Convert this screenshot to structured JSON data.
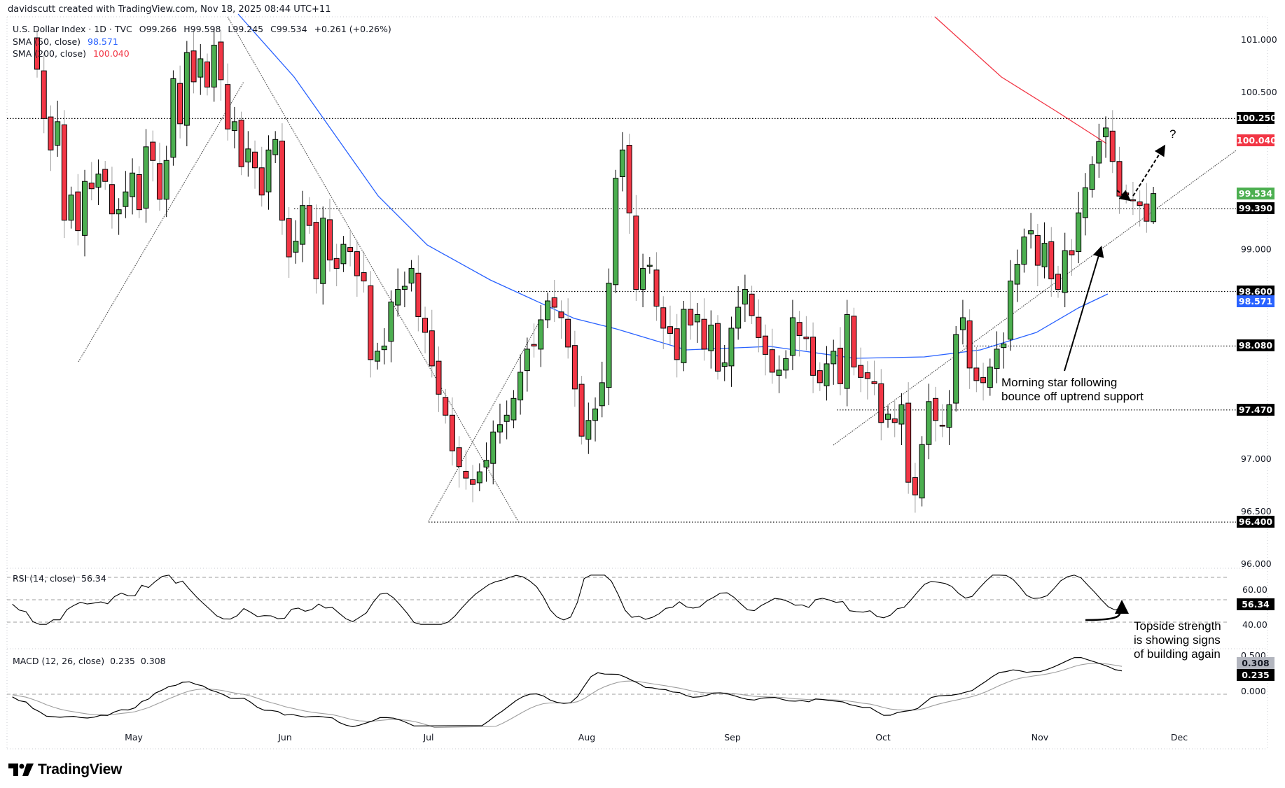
{
  "header": {
    "credit": "davidscutt created with TradingView.com, Nov 18, 2025 08:44 UTC+11",
    "symbol": "U.S. Dollar Index · 1D · TVC",
    "open": "O99.266",
    "high": "H99.598",
    "low": "L99.245",
    "close": "C99.534",
    "change": "+0.261 (+0.26%)",
    "sma50_label": "SMA (50, close)",
    "sma50_value": "98.571",
    "sma200_label": "SMA (200, close)",
    "sma200_value": "100.040"
  },
  "rsi_legend": {
    "label": "RSI (14, close)",
    "value": "56.34"
  },
  "macd_legend": {
    "label": "MACD (12, 26, close)",
    "macd": "0.235",
    "signal": "0.308"
  },
  "colors": {
    "up": "#4caf50",
    "down": "#f23645",
    "sma50": "#2962ff",
    "sma200": "#f23645",
    "text": "#131722"
  },
  "price_axis": {
    "ticks": [
      "101.000",
      "100.500",
      "99.000",
      "97.000",
      "96.500",
      "96.000"
    ],
    "tags": [
      {
        "value": "100.250",
        "bg": "#000000"
      },
      {
        "value": "100.040",
        "bg": "#f23645"
      },
      {
        "value": "99.534",
        "bg": "#4caf50"
      },
      {
        "value": "99.390",
        "bg": "#000000"
      },
      {
        "value": "98.600",
        "bg": "#000000"
      },
      {
        "value": "98.571",
        "bg": "#2962ff"
      },
      {
        "value": "98.080",
        "bg": "#000000"
      },
      {
        "value": "97.470",
        "bg": "#000000"
      },
      {
        "value": "96.400",
        "bg": "#000000"
      }
    ]
  },
  "rsi_axis": {
    "ticks": [
      "60.00",
      "40.00"
    ],
    "tag": "56.34"
  },
  "macd_axis": {
    "ticks": [
      "0.500",
      "0.000"
    ],
    "signal_tag": "0.308",
    "macd_tag": "0.235"
  },
  "time_axis": {
    "months": [
      "May",
      "Jun",
      "Jul",
      "Aug",
      "Sep",
      "Oct",
      "Nov",
      "Dec"
    ]
  },
  "annotations": {
    "morning_star": "Morning star following\nbounce off uptrend support",
    "topside": "Topside strength\nis showing signs\nof building again",
    "question": "?"
  },
  "logo": {
    "text": "TradingView"
  },
  "chart_data": {
    "type": "candlestick",
    "title": "U.S. Dollar Index · 1D · TVC",
    "xlabel": "",
    "ylabel": "",
    "ylim": [
      96.0,
      101.3
    ],
    "x_ticks": [
      "May",
      "Jun",
      "Jul",
      "Aug",
      "Sep",
      "Oct",
      "Nov",
      "Dec"
    ],
    "last": {
      "open": 99.266,
      "high": 99.598,
      "low": 99.245,
      "close": 99.534,
      "change": 0.261,
      "change_pct": 0.26
    },
    "horizontal_levels": [
      100.25,
      99.39,
      98.6,
      98.08,
      97.47,
      96.4
    ],
    "sma50_last": 98.571,
    "sma200_last": 100.04,
    "closes": [
      100.72,
      100.25,
      99.95,
      100.22,
      99.28,
      99.52,
      99.18,
      99.65,
      99.58,
      99.72,
      99.65,
      99.34,
      99.38,
      99.55,
      99.73,
      99.38,
      99.98,
      99.85,
      99.48,
      99.85,
      100.63,
      100.2,
      100.88,
      100.6,
      100.82,
      100.55,
      100.95,
      100.62,
      100.15,
      100.22,
      99.79,
      99.96,
      99.78,
      99.52,
      99.95,
      100.05,
      99.28,
      98.93,
      99.08,
      99.42,
      99.23,
      98.72,
      99.3,
      98.9,
      98.82,
      99.05,
      98.98,
      98.75,
      98.7,
      97.95,
      98.03,
      98.08,
      98.5,
      98.62,
      98.65,
      98.82,
      98.36,
      98.21,
      97.89,
      97.62,
      97.42,
      97.08,
      96.93,
      96.82,
      96.76,
      96.88,
      96.99,
      97.26,
      97.33,
      97.42,
      97.58,
      97.83,
      98.05,
      98.08,
      98.33,
      98.51,
      98.45,
      98.35,
      98.07,
      97.67,
      97.22,
      97.37,
      97.48,
      97.73,
      98.68,
      99.68,
      99.95,
      99.35,
      98.62,
      98.82,
      98.85,
      98.46,
      98.25,
      98.2,
      97.95,
      98.43,
      98.28,
      98.38,
      98.05,
      98.28,
      97.84,
      97.92,
      98.25,
      98.45,
      98.62,
      98.37,
      98.16,
      98.0,
      97.83,
      97.85,
      97.96,
      98.35,
      98.18,
      98.15,
      97.8,
      97.73,
      97.91,
      98.03,
      97.72,
      98.38,
      97.88,
      97.78,
      97.77,
      97.72,
      97.35,
      97.43,
      97.35,
      97.52,
      96.78,
      96.66,
      97.14,
      97.55,
      97.37,
      97.32,
      97.52,
      98.19,
      98.35,
      97.87,
      97.75,
      97.73,
      97.88,
      98.05,
      98.1,
      98.7,
      98.86,
      99.12,
      99.18,
      98.85,
      99.06,
      98.72,
      98.62,
      98.99,
      98.95,
      99.35,
      99.59,
      99.81,
      100.03,
      100.16,
      99.84,
      99.51,
      99.52,
      99.47,
      99.42,
      99.27,
      99.53
    ]
  }
}
